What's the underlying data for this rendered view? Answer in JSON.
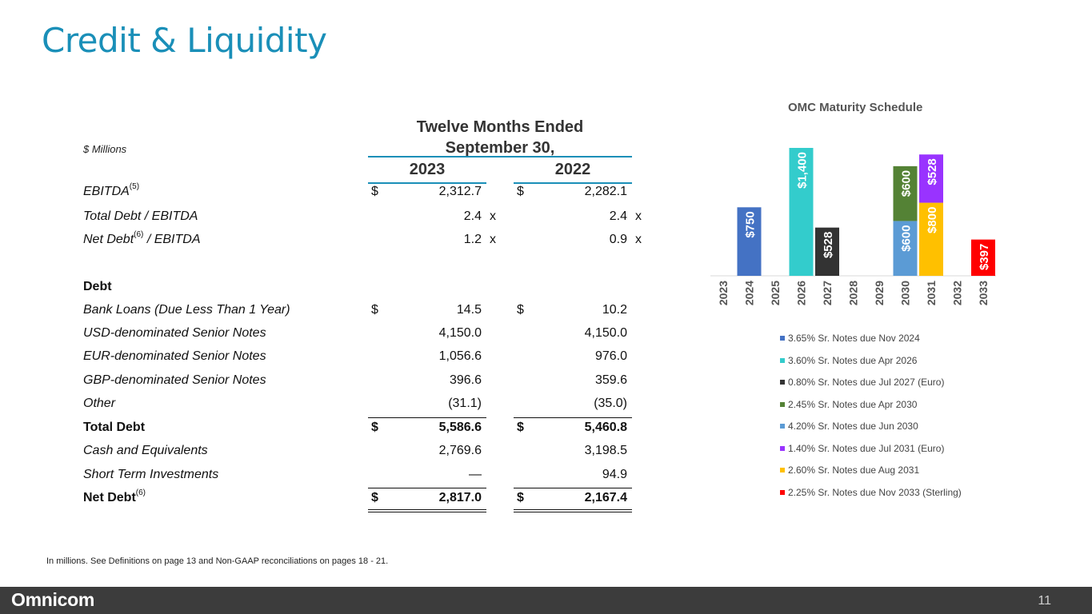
{
  "title": "Credit & Liquidity",
  "table": {
    "units_label": "$ Millions",
    "period_line1": "Twelve Months Ended",
    "period_line2": "September 30,",
    "year1": "2023",
    "year2": "2022",
    "rows": [
      {
        "label": "EBITDA",
        "sup": "(5)",
        "cur1": "$",
        "v1": "2,312.7",
        "s1": "",
        "cur2": "$",
        "v2": "2,282.1",
        "s2": ""
      },
      {
        "label": "Total Debt / EBITDA",
        "sup": "",
        "cur1": "",
        "v1": "2.4",
        "s1": "x",
        "cur2": "",
        "v2": "2.4",
        "s2": "x"
      },
      {
        "label": "Net Debt",
        "sup": "(6)",
        "label_after": " / EBITDA",
        "cur1": "",
        "v1": "1.2",
        "s1": "x",
        "cur2": "",
        "v2": "0.9",
        "s2": "x"
      },
      {
        "label": "Debt",
        "sup": "",
        "cur1": "",
        "v1": "",
        "s1": "",
        "cur2": "",
        "v2": "",
        "s2": ""
      },
      {
        "label": "Bank Loans (Due Less Than 1 Year)",
        "sup": "",
        "cur1": "$",
        "v1": "14.5",
        "s1": "",
        "cur2": "$",
        "v2": "10.2",
        "s2": ""
      },
      {
        "label": "USD-denominated Senior Notes",
        "sup": "",
        "cur1": "",
        "v1": "4,150.0",
        "s1": "",
        "cur2": "",
        "v2": "4,150.0",
        "s2": ""
      },
      {
        "label": "EUR-denominated Senior Notes",
        "sup": "",
        "cur1": "",
        "v1": "1,056.6",
        "s1": "",
        "cur2": "",
        "v2": "976.0",
        "s2": ""
      },
      {
        "label": "GBP-denominated Senior Notes",
        "sup": "",
        "cur1": "",
        "v1": "396.6",
        "s1": "",
        "cur2": "",
        "v2": "359.6",
        "s2": ""
      },
      {
        "label": "Other",
        "sup": "",
        "cur1": "",
        "v1": "(31.1)",
        "s1": "",
        "cur2": "",
        "v2": "(35.0)",
        "s2": ""
      },
      {
        "label": "Total Debt",
        "sup": "",
        "cur1": "$",
        "v1": "5,586.6",
        "s1": "",
        "cur2": "$",
        "v2": "5,460.8",
        "s2": ""
      },
      {
        "label": "Cash and Equivalents",
        "sup": "",
        "cur1": "",
        "v1": "2,769.6",
        "s1": "",
        "cur2": "",
        "v2": "3,198.5",
        "s2": ""
      },
      {
        "label": "Short Term Investments",
        "sup": "",
        "cur1": "",
        "v1": "—",
        "s1": "",
        "cur2": "",
        "v2": "94.9",
        "s2": ""
      },
      {
        "label": "Net Debt",
        "sup": "(6)",
        "cur1": "$",
        "v1": "2,817.0",
        "s1": "",
        "cur2": "$",
        "v2": "2,167.4",
        "s2": ""
      }
    ]
  },
  "footnote": "In millions.  See Definitions on page 13 and Non-GAAP reconciliations on pages 18 - 21.",
  "chart_data": {
    "type": "bar",
    "stacked": true,
    "title": "OMC Maturity Schedule",
    "categories": [
      "2023",
      "2024",
      "2025",
      "2026",
      "2027",
      "2028",
      "2029",
      "2030",
      "2031",
      "2032",
      "2033"
    ],
    "series": [
      {
        "name": "3.65% Sr. Notes due Nov 2024",
        "color": "#4472c4",
        "values": [
          0,
          750,
          0,
          0,
          0,
          0,
          0,
          0,
          0,
          0,
          0
        ],
        "labels": [
          "",
          "$750",
          "",
          "",
          "",
          "",
          "",
          "",
          "",
          "",
          ""
        ]
      },
      {
        "name": "3.60% Sr. Notes due Apr 2026",
        "color": "#33cccc",
        "values": [
          0,
          0,
          0,
          1400,
          0,
          0,
          0,
          0,
          0,
          0,
          0
        ],
        "labels": [
          "",
          "",
          "",
          "$1,400",
          "",
          "",
          "",
          "",
          "",
          "",
          ""
        ]
      },
      {
        "name": "0.80% Sr. Notes due Jul 2027 (Euro)",
        "color": "#333333",
        "values": [
          0,
          0,
          0,
          0,
          528,
          0,
          0,
          0,
          0,
          0,
          0
        ],
        "labels": [
          "",
          "",
          "",
          "",
          "$528",
          "",
          "",
          "",
          "",
          "",
          ""
        ]
      },
      {
        "name": "4.20% Sr. Notes due Jun 2030",
        "color": "#5b9bd5",
        "values": [
          0,
          0,
          0,
          0,
          0,
          0,
          0,
          600,
          0,
          0,
          0
        ],
        "labels": [
          "",
          "",
          "",
          "",
          "",
          "",
          "",
          "$600",
          "",
          "",
          ""
        ]
      },
      {
        "name": "2.45% Sr. Notes due Apr 2030",
        "color": "#548235",
        "values": [
          0,
          0,
          0,
          0,
          0,
          0,
          0,
          600,
          0,
          0,
          0
        ],
        "labels": [
          "",
          "",
          "",
          "",
          "",
          "",
          "",
          "$600",
          "",
          "",
          ""
        ]
      },
      {
        "name": "2.60% Sr. Notes due Aug 2031",
        "color": "#ffc000",
        "values": [
          0,
          0,
          0,
          0,
          0,
          0,
          0,
          0,
          800,
          0,
          0
        ],
        "labels": [
          "",
          "",
          "",
          "",
          "",
          "",
          "",
          "",
          "$800",
          "",
          ""
        ]
      },
      {
        "name": "1.40% Sr. Notes due Jul 2031 (Euro)",
        "color": "#9933ff",
        "values": [
          0,
          0,
          0,
          0,
          0,
          0,
          0,
          0,
          528,
          0,
          0
        ],
        "labels": [
          "",
          "",
          "",
          "",
          "",
          "",
          "",
          "",
          "$528",
          "",
          ""
        ]
      },
      {
        "name": "2.25% Sr. Notes due Nov 2033 (Sterling)",
        "color": "#ff0000",
        "values": [
          0,
          0,
          0,
          0,
          0,
          0,
          0,
          0,
          0,
          0,
          397
        ],
        "labels": [
          "",
          "",
          "",
          "",
          "",
          "",
          "",
          "",
          "",
          "",
          "$397"
        ]
      }
    ],
    "legend_order": [
      {
        "name": "3.65% Sr. Notes due Nov 2024",
        "color": "#4472c4"
      },
      {
        "name": "3.60% Sr. Notes due Apr 2026",
        "color": "#33cccc"
      },
      {
        "name": "0.80% Sr. Notes due Jul 2027 (Euro)",
        "color": "#333333"
      },
      {
        "name": "2.45% Sr. Notes due Apr 2030",
        "color": "#548235"
      },
      {
        "name": "4.20% Sr. Notes due Jun 2030",
        "color": "#5b9bd5"
      },
      {
        "name": "1.40% Sr. Notes due Jul 2031 (Euro)",
        "color": "#9933ff"
      },
      {
        "name": "2.60% Sr. Notes due Aug 2031",
        "color": "#ffc000"
      },
      {
        "name": "2.25% Sr. Notes due Nov 2033 (Sterling)",
        "color": "#ff0000"
      }
    ],
    "legend_position": "bottom"
  },
  "footer": {
    "logo": "Omnicom",
    "page_number": "11"
  },
  "colors": {
    "accent": "#1a8fb8",
    "footer_bg": "#3c3c3c"
  }
}
